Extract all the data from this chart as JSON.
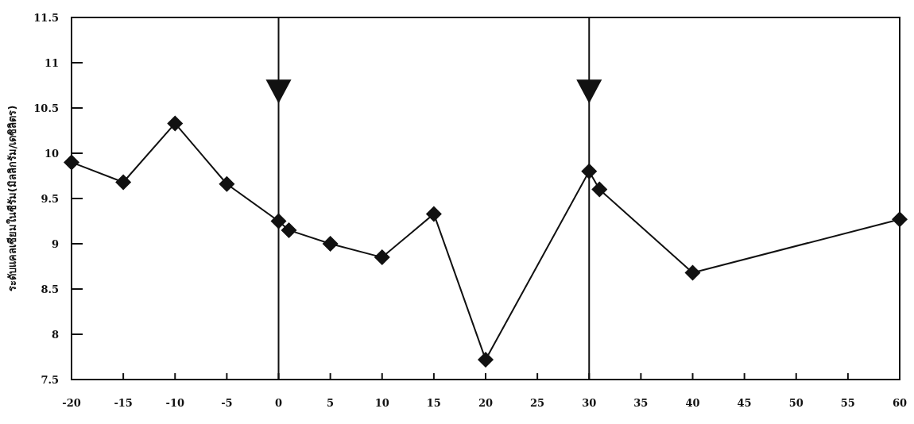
{
  "chart_data": {
    "type": "line",
    "ylabel": "ระดับแคลเซียมในซีรัม(มิลลิกรัม/เดซิลิตร)",
    "x": [
      -20,
      -15,
      -10,
      -5,
      0,
      1,
      5,
      10,
      15,
      20,
      30,
      31,
      40,
      60
    ],
    "series": [
      {
        "color": "#111111",
        "values": [
          9.9,
          9.68,
          10.33,
          9.66,
          9.25,
          9.15,
          9.0,
          8.85,
          9.33,
          7.72,
          9.8,
          9.6,
          8.68,
          9.27
        ]
      }
    ],
    "xlim": [
      -20,
      60
    ],
    "xticks": [
      -20,
      -15,
      -10,
      -5,
      0,
      5,
      10,
      15,
      20,
      25,
      30,
      35,
      40,
      45,
      50,
      55,
      60
    ],
    "ylim": [
      7.5,
      11.5
    ],
    "yticks": [
      7.5,
      8,
      8.5,
      9,
      9.5,
      10,
      10.5,
      11,
      11.5
    ],
    "ref_lines": [
      {
        "axis": "x",
        "value": 0,
        "color": "#111111"
      },
      {
        "axis": "x",
        "value": 30,
        "color": "#111111"
      }
    ],
    "marker": "diamond",
    "grid": false
  }
}
